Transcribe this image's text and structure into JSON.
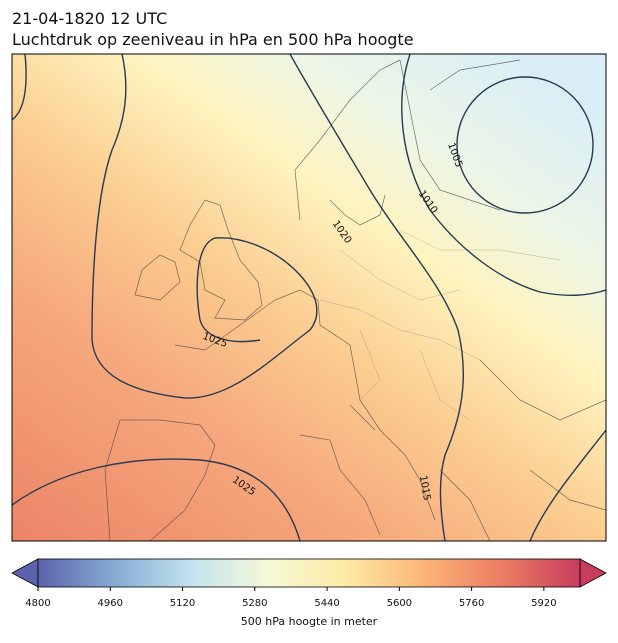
{
  "header": {
    "date": "21-04-1820 12 UTC",
    "title": "Luchtdruk op zeeniveau in hPa en 500 hPa hoogte"
  },
  "contour_labels": [
    1005,
    1010,
    1020,
    1025,
    1025,
    1015
  ],
  "colorbar": {
    "label": "500 hPa hoogte in meter",
    "lim": [
      4800,
      6000
    ],
    "ticks": [
      4800,
      4960,
      5120,
      5280,
      5440,
      5600,
      5760,
      5920
    ],
    "colors": [
      "#5c63ad",
      "#86acd3",
      "#c4e4ef",
      "#f6f9d6",
      "#fee9a3",
      "#fbb476",
      "#ec7c63",
      "#c83d5c"
    ]
  }
}
